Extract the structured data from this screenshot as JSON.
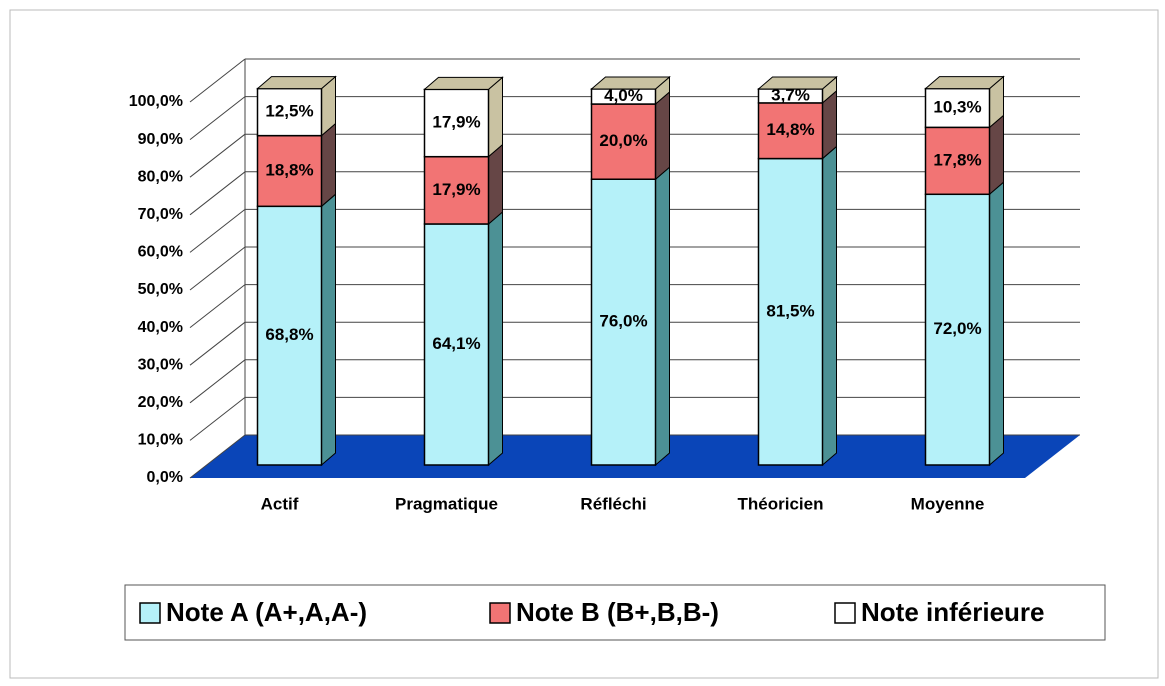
{
  "chart_data": {
    "type": "bar3d_stacked",
    "categories": [
      "Actif",
      "Pragmatique",
      "Réfléchi",
      "Théoricien",
      "Moyenne"
    ],
    "series": [
      {
        "name": "Note A (A+,A,A-)",
        "color": "#b5f1f9",
        "values": [
          68.8,
          64.1,
          76.0,
          81.5,
          72.0
        ],
        "value_labels": [
          "68,8%",
          "64,1%",
          "76,0%",
          "81,5%",
          "72,0%"
        ]
      },
      {
        "name": "Note B (B+,B,B-)",
        "color": "#f27474",
        "values": [
          18.8,
          17.9,
          20.0,
          14.8,
          17.8
        ],
        "value_labels": [
          "18,8%",
          "17,9%",
          "20,0%",
          "14,8%",
          "17,8%"
        ]
      },
      {
        "name": "Note inférieure",
        "color": "#ffffff",
        "values": [
          12.5,
          17.9,
          4.0,
          3.7,
          10.3
        ],
        "value_labels": [
          "12,5%",
          "17,9%",
          "4,0%",
          "3,7%",
          "10,3%"
        ]
      }
    ],
    "ylim": [
      0,
      100
    ],
    "yticks": [
      {
        "value": 0,
        "label": "0,0%"
      },
      {
        "value": 10,
        "label": "10,0%"
      },
      {
        "value": 20,
        "label": "20,0%"
      },
      {
        "value": 30,
        "label": "30,0%"
      },
      {
        "value": 40,
        "label": "40,0%"
      },
      {
        "value": 50,
        "label": "50,0%"
      },
      {
        "value": 60,
        "label": "60,0%"
      },
      {
        "value": 70,
        "label": "70,0%"
      },
      {
        "value": 80,
        "label": "80,0%"
      },
      {
        "value": 90,
        "label": "90,0%"
      },
      {
        "value": 100,
        "label": "100,0%"
      }
    ],
    "grid": true,
    "floor_color": "#0a45b8"
  }
}
